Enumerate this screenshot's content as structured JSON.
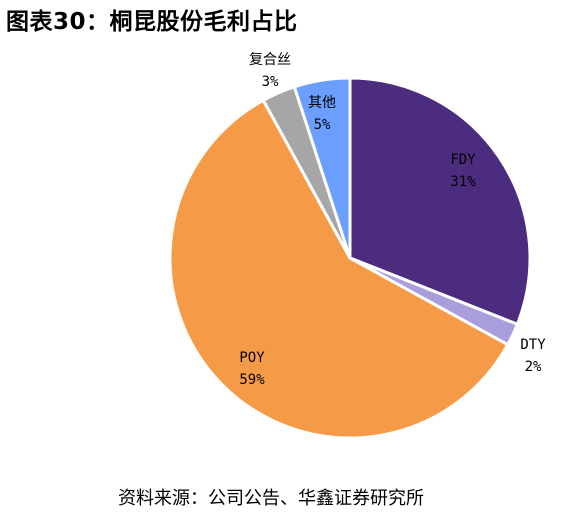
{
  "header": {
    "title": "图表30：桐昆股份毛利占比"
  },
  "footer": {
    "source": "资料来源：公司公告、华鑫证券研究所"
  },
  "chart_data": {
    "type": "pie",
    "title": "图表30：桐昆股份毛利占比",
    "slices": [
      {
        "label": "FDY",
        "value": 31,
        "value_text": "31%",
        "color": "#4b2c7f"
      },
      {
        "label": "DTY",
        "value": 2,
        "value_text": "2%",
        "color": "#a99ddb"
      },
      {
        "label": "POY",
        "value": 59,
        "value_text": "59%",
        "color": "#f59a47"
      },
      {
        "label": "复合丝",
        "value": 3,
        "value_text": "3%",
        "color": "#a6a6a6"
      },
      {
        "label": "其他",
        "value": 5,
        "value_text": "5%",
        "color": "#6a9fff"
      }
    ],
    "legend": "none",
    "label_placement": "on-slice and outside"
  }
}
